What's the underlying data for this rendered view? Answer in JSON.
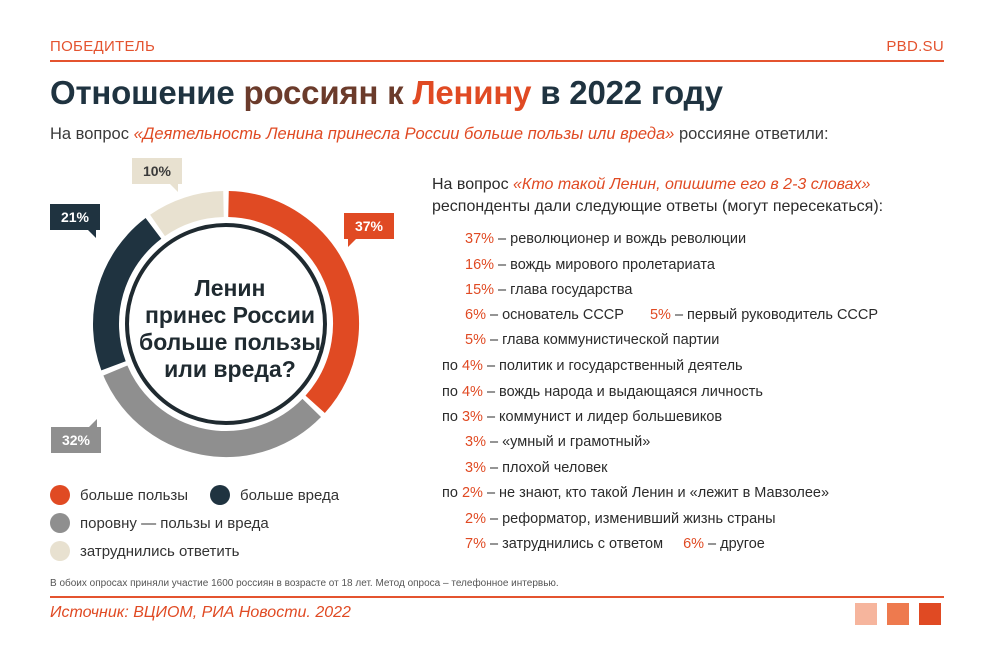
{
  "header": {
    "brand_left": "ПОБЕДИТЕЛЬ",
    "brand_right": "PBD.SU"
  },
  "title": {
    "part1": "Отношение ",
    "part2": "россиян к ",
    "part3": "Ленину",
    "part4": " в 2022 году"
  },
  "subtitle": {
    "prefix": "На вопрос ",
    "question": "«Деятельность Ленина принесла России больше пользы или вреда»",
    "suffix": " россияне ответили:"
  },
  "colors": {
    "red": "#e04a23",
    "navy": "#1f3340",
    "grey": "#8f8f8f",
    "beige": "#e8e1d0"
  },
  "chart_data": {
    "type": "pie",
    "title": "",
    "center_text": [
      "Ленин",
      "принес России",
      "больше пользы",
      "или вреда?"
    ],
    "slices": [
      {
        "label": "больше пользы",
        "value": 37,
        "label_text": "37%",
        "color": "#e04a23"
      },
      {
        "label": "поровну — пользы и вреда",
        "value": 32,
        "label_text": "32%",
        "color": "#8f8f8f"
      },
      {
        "label": "больше вреда",
        "value": 21,
        "label_text": "21%",
        "color": "#1f3340"
      },
      {
        "label": "затруднились ответить",
        "value": 10,
        "label_text": "10%",
        "color": "#e8e1d0"
      }
    ]
  },
  "legend": [
    {
      "label": "больше пользы",
      "color": "#e04a23"
    },
    {
      "label": "больше вреда",
      "color": "#1f3340"
    },
    {
      "label": "поровну — пользы и вреда",
      "color": "#8f8f8f"
    },
    {
      "label": "затруднились ответить",
      "color": "#e8e1d0"
    }
  ],
  "right": {
    "intro_prefix": "На вопрос ",
    "intro_question": "«Кто такой Ленин, опишите его в 2-3 словах»",
    "intro_line2": "респонденты дали следующие ответы (могут пересекаться):",
    "answers": [
      {
        "pct": "37%",
        "text": " – революционер и вождь революции"
      },
      {
        "pct": "16%",
        "text": " – вождь мирового пролетариата"
      },
      {
        "pct": "15%",
        "text": " – глава государства"
      },
      {
        "pct": "6%",
        "text": " – основатель СССР",
        "pct2": "5%",
        "text2": " – первый руководитель СССР"
      },
      {
        "pct": "5%",
        "text": " – глава коммунистической партии"
      },
      {
        "pre": "по ",
        "pct": "4%",
        "text": " – политик и государственный деятель"
      },
      {
        "pre": "по ",
        "pct": "4%",
        "text": " – вождь народа и выдающаяся личность"
      },
      {
        "pre": "по ",
        "pct": "3%",
        "text": " – коммунист и лидер большевиков"
      },
      {
        "pct": "3%",
        "text": " – «умный и грамотный»"
      },
      {
        "pct": "3%",
        "text": " – плохой человек"
      },
      {
        "pre": "по ",
        "pct": "2%",
        "text": " – не знают, кто такой Ленин и «лежит в Мавзолее»"
      },
      {
        "pct": "2%",
        "text": " –  реформатор, изменивший жизнь страны"
      },
      {
        "pct": "7%",
        "text": " – затруднились с ответом",
        "pct2": "6%",
        "text2": " – другое"
      }
    ]
  },
  "footnote": "В обоих опросах приняли участие 1600 россиян в возрасте от 18 лет. Метод опроса – телефонное интервью.",
  "source": "Источник: ВЦИОМ, РИА Новости. 2022",
  "decor_squares": [
    "#f6b59d",
    "#ee7a4e",
    "#e04a23"
  ]
}
